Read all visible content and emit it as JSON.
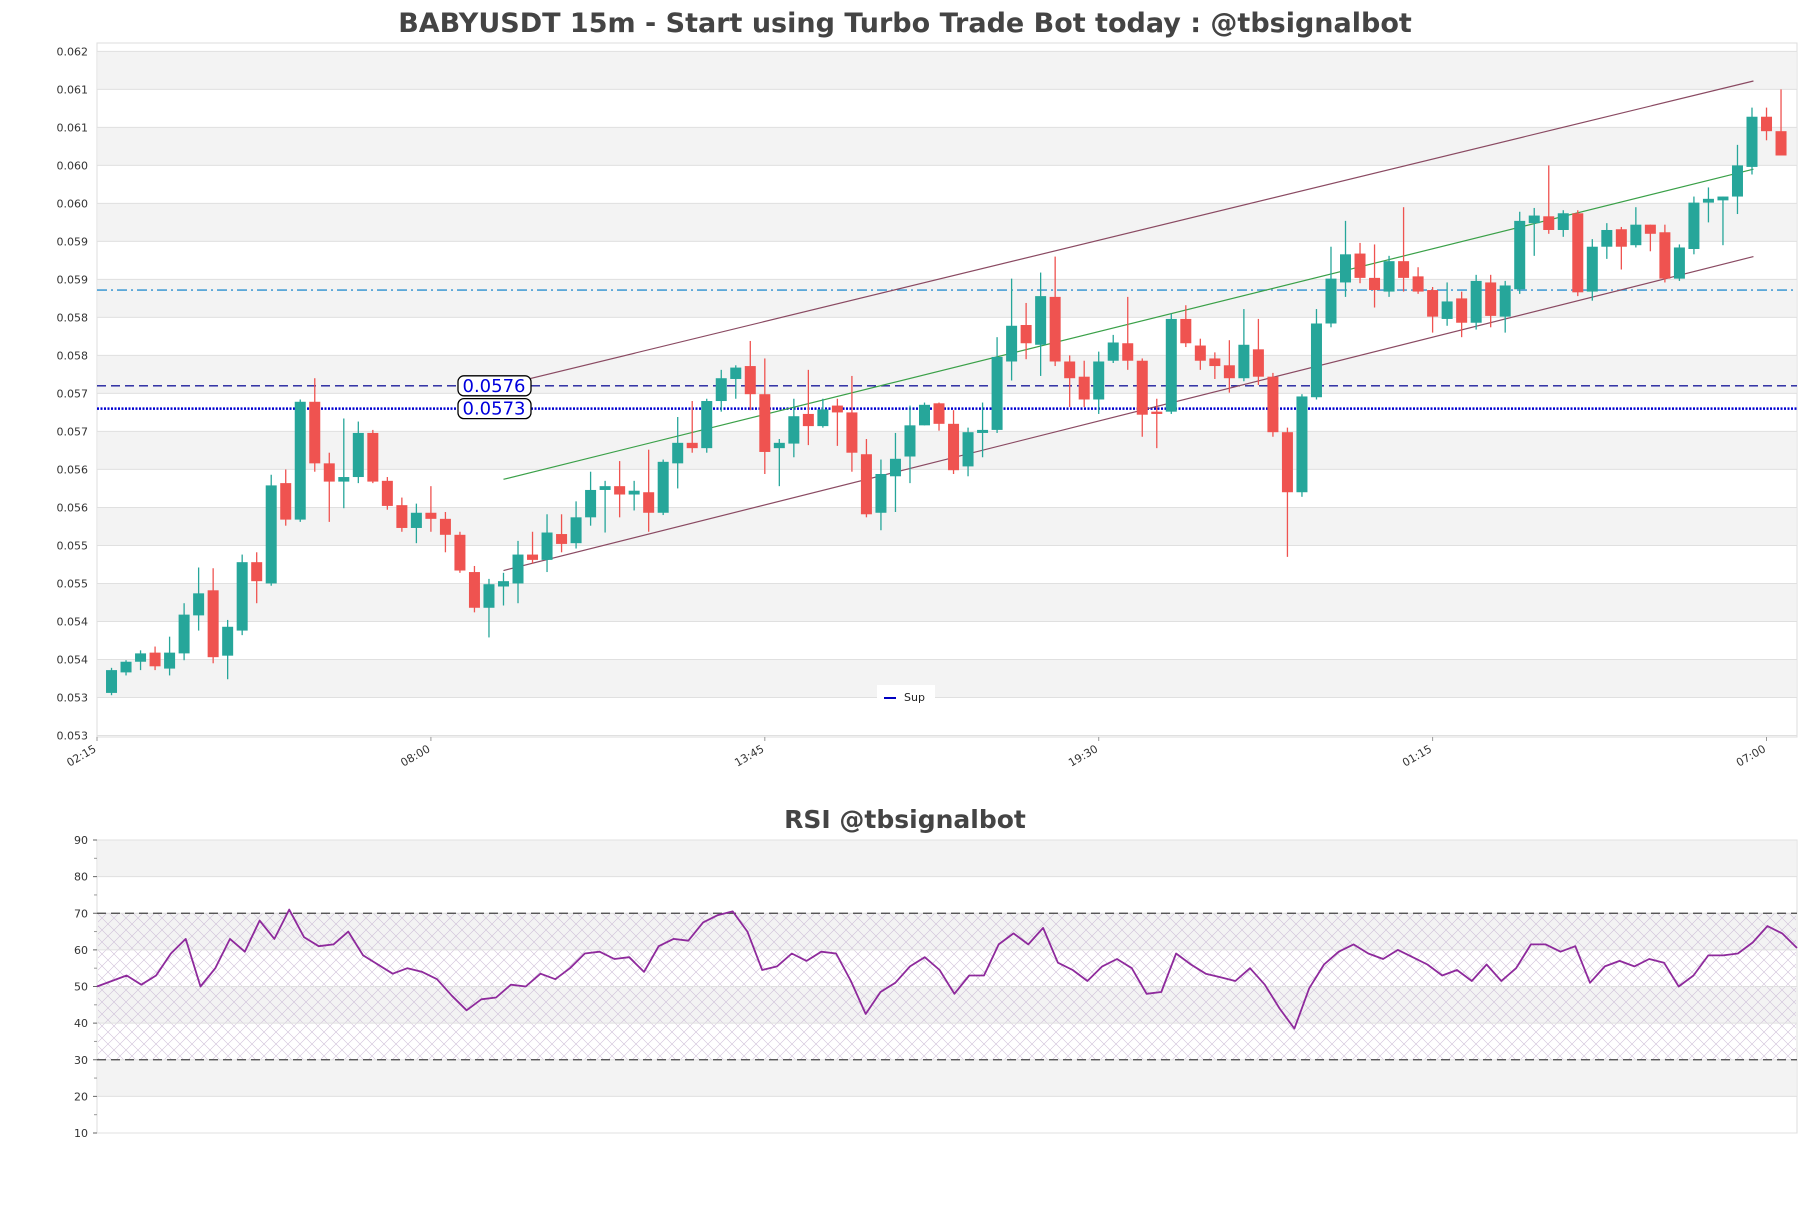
{
  "chart_data": [
    {
      "type": "candlestick",
      "title": "BABYUSDT 15m - Start using Turbo Trade Bot today : @tbsignalbot",
      "xlabel": "",
      "ylabel": "",
      "ylim": [
        0.05298,
        0.06211
      ],
      "xlim": [
        0,
        117.1
      ],
      "grid": true,
      "y_ticks": [
        0.062,
        0.0615,
        0.061,
        0.0605,
        0.06,
        0.0595,
        0.059,
        0.0585,
        0.058,
        0.0575,
        0.057,
        0.0565,
        0.056,
        0.0555,
        0.055,
        0.0545,
        0.054,
        0.0535,
        0.053
      ],
      "y_tick_labels": [
        "0.062",
        "0.061",
        "0.061",
        "0.060",
        "0.060",
        "0.059",
        "0.059",
        "0.058",
        "0.058",
        "0.057",
        "0.057",
        "0.056",
        "0.056",
        "0.055",
        "0.055",
        "0.054",
        "0.054",
        "0.053",
        "0.053"
      ],
      "x_ticks": [
        {
          "index": 0,
          "label": "02:15"
        },
        {
          "index": 23,
          "label": "08:00"
        },
        {
          "index": 46,
          "label": "13:45"
        },
        {
          "index": 69,
          "label": "19:30"
        },
        {
          "index": 92,
          "label": "01:15"
        },
        {
          "index": 115,
          "label": "07:00"
        }
      ],
      "candle_fields": [
        "open",
        "high",
        "low",
        "close"
      ],
      "first_candle_index": 1,
      "candles": [
        [
          0.05356,
          0.05389,
          0.05353,
          0.05386
        ],
        [
          0.05383,
          0.05399,
          0.05379,
          0.05397
        ],
        [
          0.05397,
          0.05412,
          0.05386,
          0.05408
        ],
        [
          0.05409,
          0.05417,
          0.05386,
          0.05391
        ],
        [
          0.05388,
          0.0543,
          0.05379,
          0.05409
        ],
        [
          0.05408,
          0.05474,
          0.05399,
          0.05459
        ],
        [
          0.05458,
          0.05521,
          0.05438,
          0.05487
        ],
        [
          0.05491,
          0.0552,
          0.05395,
          0.05403
        ],
        [
          0.05405,
          0.05452,
          0.05374,
          0.05443
        ],
        [
          0.05438,
          0.05538,
          0.05432,
          0.05528
        ],
        [
          0.05528,
          0.05541,
          0.05474,
          0.05503
        ],
        [
          0.055,
          0.05643,
          0.05497,
          0.05629
        ],
        [
          0.05632,
          0.0565,
          0.05576,
          0.05584
        ],
        [
          0.05584,
          0.05742,
          0.05581,
          0.05739
        ],
        [
          0.05739,
          0.0577,
          0.05647,
          0.05658
        ],
        [
          0.05658,
          0.05672,
          0.05581,
          0.05634
        ],
        [
          0.05634,
          0.05717,
          0.05599,
          0.0564
        ],
        [
          0.0564,
          0.05713,
          0.05632,
          0.05698
        ],
        [
          0.05698,
          0.05702,
          0.05632,
          0.05634
        ],
        [
          0.05635,
          0.0564,
          0.05597,
          0.05602
        ],
        [
          0.05603,
          0.05613,
          0.05568,
          0.05573
        ],
        [
          0.05573,
          0.05605,
          0.05553,
          0.05593
        ],
        [
          0.05593,
          0.05628,
          0.05568,
          0.05585
        ],
        [
          0.05585,
          0.05594,
          0.05541,
          0.05564
        ],
        [
          0.05564,
          0.05568,
          0.05514,
          0.05517
        ],
        [
          0.05515,
          0.05523,
          0.05462,
          0.05468
        ],
        [
          0.05468,
          0.05506,
          0.05429,
          0.05499
        ],
        [
          0.05496,
          0.05514,
          0.05471,
          0.05503
        ],
        [
          0.055,
          0.05556,
          0.05474,
          0.05538
        ],
        [
          0.05538,
          0.05568,
          0.05526,
          0.05531
        ],
        [
          0.05531,
          0.05591,
          0.05515,
          0.05567
        ],
        [
          0.05565,
          0.05591,
          0.05541,
          0.05552
        ],
        [
          0.05553,
          0.05608,
          0.05546,
          0.05587
        ],
        [
          0.05587,
          0.05647,
          0.05576,
          0.05623
        ],
        [
          0.05623,
          0.05635,
          0.05567,
          0.05628
        ],
        [
          0.05628,
          0.05661,
          0.05587,
          0.05617
        ],
        [
          0.05617,
          0.05635,
          0.05596,
          0.05622
        ],
        [
          0.0562,
          0.05676,
          0.05568,
          0.05593
        ],
        [
          0.05593,
          0.05663,
          0.0559,
          0.0566
        ],
        [
          0.05658,
          0.05719,
          0.05625,
          0.05685
        ],
        [
          0.05685,
          0.0574,
          0.05672,
          0.05678
        ],
        [
          0.05678,
          0.05743,
          0.05672,
          0.0574
        ],
        [
          0.0574,
          0.05781,
          0.05726,
          0.0577
        ],
        [
          0.05769,
          0.05787,
          0.05743,
          0.05784
        ],
        [
          0.05786,
          0.05819,
          0.05728,
          0.05749
        ],
        [
          0.05749,
          0.05796,
          0.05644,
          0.05673
        ],
        [
          0.05678,
          0.0569,
          0.05628,
          0.05685
        ],
        [
          0.05684,
          0.05743,
          0.05666,
          0.0572
        ],
        [
          0.05723,
          0.05781,
          0.05682,
          0.05707
        ],
        [
          0.05707,
          0.05743,
          0.05705,
          0.05729
        ],
        [
          0.05734,
          0.05743,
          0.05681,
          0.05725
        ],
        [
          0.05725,
          0.05773,
          0.05647,
          0.05672
        ],
        [
          0.0567,
          0.0569,
          0.05587,
          0.05591
        ],
        [
          0.05593,
          0.05663,
          0.0557,
          0.05644
        ],
        [
          0.05641,
          0.05698,
          0.05594,
          0.05664
        ],
        [
          0.05667,
          0.05734,
          0.05632,
          0.05708
        ],
        [
          0.05708,
          0.05738,
          0.05708,
          0.05735
        ],
        [
          0.05737,
          0.05738,
          0.05701,
          0.0571
        ],
        [
          0.0571,
          0.05728,
          0.05644,
          0.05649
        ],
        [
          0.05654,
          0.05705,
          0.05641,
          0.05699
        ],
        [
          0.05698,
          0.05738,
          0.05666,
          0.05702
        ],
        [
          0.05702,
          0.05824,
          0.05698,
          0.05798
        ],
        [
          0.05792,
          0.05901,
          0.05767,
          0.05839
        ],
        [
          0.0584,
          0.05869,
          0.05795,
          0.05816
        ],
        [
          0.05814,
          0.05909,
          0.05773,
          0.05878
        ],
        [
          0.05877,
          0.0593,
          0.05786,
          0.05792
        ],
        [
          0.05792,
          0.058,
          0.05732,
          0.0577
        ],
        [
          0.05772,
          0.05793,
          0.05732,
          0.05742
        ],
        [
          0.05742,
          0.05805,
          0.05723,
          0.05792
        ],
        [
          0.05793,
          0.05827,
          0.0579,
          0.05817
        ],
        [
          0.05816,
          0.05877,
          0.05781,
          0.05793
        ],
        [
          0.05793,
          0.05796,
          0.05693,
          0.05722
        ],
        [
          0.05726,
          0.05743,
          0.05678,
          0.05723
        ],
        [
          0.05726,
          0.05855,
          0.05723,
          0.05848
        ],
        [
          0.05848,
          0.05866,
          0.05811,
          0.05816
        ],
        [
          0.05813,
          0.05822,
          0.05781,
          0.05793
        ],
        [
          0.05796,
          0.05804,
          0.05769,
          0.05786
        ],
        [
          0.05787,
          0.0582,
          0.05751,
          0.0577
        ],
        [
          0.0577,
          0.05861,
          0.05766,
          0.05814
        ],
        [
          0.05808,
          0.05848,
          0.05761,
          0.05772
        ],
        [
          0.05772,
          0.05777,
          0.05693,
          0.05699
        ],
        [
          0.05699,
          0.05705,
          0.05535,
          0.0562
        ],
        [
          0.0562,
          0.05749,
          0.05614,
          0.05746
        ],
        [
          0.05745,
          0.05861,
          0.05742,
          0.05842
        ],
        [
          0.05842,
          0.05943,
          0.05837,
          0.05901
        ],
        [
          0.05896,
          0.05977,
          0.05877,
          0.05933
        ],
        [
          0.05934,
          0.05948,
          0.05895,
          0.05902
        ],
        [
          0.05902,
          0.05946,
          0.05863,
          0.05886
        ],
        [
          0.05884,
          0.05931,
          0.05877,
          0.05924
        ],
        [
          0.05924,
          0.05995,
          0.05884,
          0.05902
        ],
        [
          0.05904,
          0.05916,
          0.05881,
          0.05884
        ],
        [
          0.05886,
          0.0589,
          0.0583,
          0.05851
        ],
        [
          0.05848,
          0.05896,
          0.05839,
          0.05871
        ],
        [
          0.05875,
          0.05884,
          0.05824,
          0.05843
        ],
        [
          0.05843,
          0.05906,
          0.05834,
          0.05898
        ],
        [
          0.05896,
          0.05906,
          0.05837,
          0.05852
        ],
        [
          0.05851,
          0.05898,
          0.0583,
          0.05892
        ],
        [
          0.05887,
          0.05989,
          0.05881,
          0.05977
        ],
        [
          0.05974,
          0.05994,
          0.05931,
          0.05984
        ],
        [
          0.05983,
          0.0605,
          0.0596,
          0.05965
        ],
        [
          0.05965,
          0.05991,
          0.05956,
          0.05987
        ],
        [
          0.05987,
          0.05991,
          0.05878,
          0.05883
        ],
        [
          0.05884,
          0.05953,
          0.05872,
          0.05943
        ],
        [
          0.05943,
          0.05974,
          0.05927,
          0.05965
        ],
        [
          0.05966,
          0.05969,
          0.05913,
          0.05943
        ],
        [
          0.05945,
          0.05995,
          0.05942,
          0.05972
        ],
        [
          0.05972,
          0.05972,
          0.05937,
          0.0596
        ],
        [
          0.05962,
          0.05972,
          0.05896,
          0.05901
        ],
        [
          0.05901,
          0.05946,
          0.05898,
          0.05942
        ],
        [
          0.0594,
          0.06009,
          0.05933,
          0.06001
        ],
        [
          0.06001,
          0.06021,
          0.05975,
          0.06006
        ],
        [
          0.06004,
          0.06009,
          0.05945,
          0.06009
        ],
        [
          0.06009,
          0.06077,
          0.05986,
          0.0605
        ],
        [
          0.06048,
          0.06126,
          0.06038,
          0.06114
        ],
        [
          0.06114,
          0.06126,
          0.06083,
          0.06095
        ],
        [
          0.06095,
          0.0615,
          0.06063,
          0.06063
        ]
      ],
      "colors": {
        "up": "#26a69a",
        "down": "#ef5350"
      },
      "horizontal_levels": [
        {
          "name": "resistance-level",
          "price": 0.0576,
          "label": "0.0576",
          "style": "dashed",
          "color": "#1c1c9c"
        },
        {
          "name": "support-level",
          "price": 0.0573,
          "label": "0.0573",
          "style": "dotted",
          "color": "#0000d0"
        },
        {
          "name": "upper-level",
          "price": 0.05886,
          "style": "dashdot",
          "color": "#2a8fd0"
        }
      ],
      "trend_lines": [
        {
          "name": "channel-upper",
          "from": [
            28,
            0.05761
          ],
          "to": [
            114.1,
            0.06161
          ],
          "color": "#8a4a62"
        },
        {
          "name": "channel-middle",
          "from": [
            28,
            0.05637
          ],
          "to": [
            114.1,
            0.06045
          ],
          "color": "#3aa048"
        },
        {
          "name": "channel-lower",
          "from": [
            28,
            0.05517
          ],
          "to": [
            114.1,
            0.0593
          ],
          "color": "#8a4a62"
        }
      ],
      "legend": {
        "label": "Sup",
        "color": "#0000c0",
        "placement": "bottom-center"
      }
    },
    {
      "type": "line",
      "title": "RSI @tbsignalbot",
      "ylim": [
        10,
        90
      ],
      "y_ticks": [
        90,
        80,
        70,
        60,
        50,
        40,
        30,
        20,
        10
      ],
      "y_tick_labels": [
        "90",
        "80",
        "70",
        "60",
        "50",
        "40",
        "30",
        "20",
        "10"
      ],
      "overbought": 70,
      "oversold": 30,
      "color": "#8e2a9c",
      "values": [
        50,
        51.5,
        53,
        50.5,
        53,
        59,
        63,
        50,
        55,
        63,
        59.5,
        68,
        63,
        71,
        63.5,
        61,
        61.5,
        65,
        58.5,
        56,
        53.5,
        55,
        54,
        52,
        47.5,
        43.5,
        46.5,
        47,
        50.5,
        50,
        53.5,
        52,
        55,
        59,
        59.5,
        57.5,
        58,
        54,
        61,
        63,
        62.5,
        67.5,
        69.5,
        70.5,
        65,
        54.5,
        55.5,
        59,
        57,
        59.5,
        59,
        51.5,
        42.5,
        48.5,
        51,
        55.5,
        58,
        54.5,
        48,
        53,
        53,
        61.5,
        64.5,
        61.5,
        66,
        56.5,
        54.5,
        51.5,
        55.5,
        57.5,
        55,
        48,
        48.5,
        59,
        56,
        53.5,
        52.5,
        51.5,
        55,
        50.5,
        44,
        38.5,
        49.5,
        56,
        59.5,
        61.5,
        59,
        57.5,
        60,
        58,
        56,
        53,
        54.5,
        51.5,
        56,
        51.5,
        55,
        61.5,
        61.5,
        59.5,
        61,
        51,
        55.5,
        57,
        55.5,
        57.5,
        56.5,
        50,
        53,
        58.5,
        58.5,
        59,
        62,
        66.5,
        64.5,
        60.5
      ]
    }
  ]
}
